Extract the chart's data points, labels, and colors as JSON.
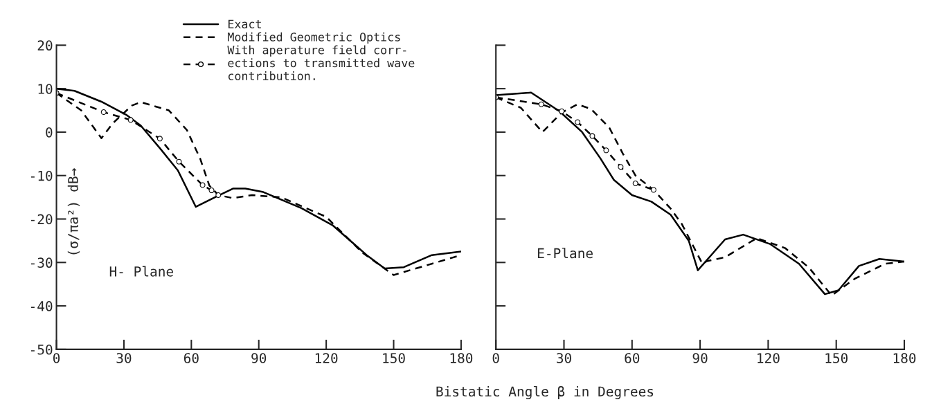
{
  "chart_data": [
    {
      "type": "line",
      "ylabel": "(σ/πa²) dB→",
      "xlim": [
        0,
        180
      ],
      "ylim": [
        -50,
        20
      ],
      "xticks": [
        0,
        30,
        60,
        90,
        120,
        150,
        180
      ],
      "yticks": [
        -50,
        -40,
        -30,
        -20,
        -10,
        0,
        10,
        20
      ],
      "grid": false,
      "legend": "top",
      "annotations": [
        "H- Plane"
      ],
      "series": [
        {
          "name": "Exact",
          "color": "#000000",
          "line_style": "solid",
          "x": [
            0,
            8,
            20,
            31,
            37.5,
            46,
            54,
            62,
            70.5,
            78.5,
            84,
            92,
            109,
            123,
            138,
            146,
            154.5,
            167,
            180
          ],
          "values": [
            10,
            9.5,
            7,
            4,
            1.5,
            -3.7,
            -8.8,
            -17.2,
            -15,
            -13,
            -13,
            -13.8,
            -17.5,
            -21.5,
            -28.3,
            -31.4,
            -31.1,
            -28.3,
            -27.5
          ]
        },
        {
          "name": "Modified Geometric Optics",
          "color": "#000000",
          "line_style": "dashed",
          "x": [
            0,
            11,
            20,
            25,
            33.5,
            37.5,
            50,
            58,
            64,
            68,
            72,
            78.5,
            87,
            100,
            120,
            136,
            150,
            165,
            180
          ],
          "values": [
            9,
            5,
            -1.4,
            2,
            6.1,
            6.9,
            5,
            0.5,
            -6.2,
            -12.3,
            -14.5,
            -15.2,
            -14.5,
            -15,
            -19.5,
            -27.7,
            -32.9,
            -30.6,
            -28.3
          ]
        },
        {
          "name": "With aperature field corr-\nections to transmitted wave\ncontribution.",
          "color": "#000000",
          "line_style": "dashed",
          "marker": "circle",
          "x": [
            0,
            21,
            33,
            46,
            54.5,
            65,
            69,
            72
          ],
          "values": [
            9,
            4.6,
            2.8,
            -1.5,
            -6.8,
            -12.2,
            -13.4,
            -14.5
          ]
        }
      ]
    },
    {
      "type": "line",
      "xlabel": "Bistatic Angle β in Degrees",
      "xlim": [
        0,
        180
      ],
      "ylim": [
        -50,
        20
      ],
      "xticks": [
        0,
        30,
        60,
        90,
        120,
        150,
        180
      ],
      "yticks": [
        {
          "value": -40,
          "label": null
        },
        {
          "value": -30,
          "label": null
        },
        {
          "value": -20,
          "label": null
        },
        {
          "value": -10,
          "label": null
        },
        {
          "value": 0,
          "label": null
        },
        {
          "value": 10,
          "label": null
        },
        {
          "value": 20,
          "label": null
        }
      ],
      "tick_labels": "x",
      "grid": false,
      "annotations": [
        "E-Plane"
      ],
      "series": [
        {
          "color": "#000000",
          "line_style": "solid",
          "x": [
            0,
            15.5,
            28,
            38,
            46,
            52,
            60,
            68.5,
            77,
            85,
            89,
            101,
            109,
            121,
            133.6,
            145,
            151,
            160,
            169,
            180
          ],
          "values": [
            8.5,
            9.1,
            4.8,
            0,
            -6,
            -11,
            -14.5,
            -16,
            -19,
            -25,
            -31.8,
            -24.7,
            -23.6,
            -25.8,
            -30.3,
            -37.3,
            -36.4,
            -30.8,
            -29.2,
            -29.8
          ]
        },
        {
          "color": "#000000",
          "line_style": "dashed",
          "x": [
            0,
            11,
            20.5,
            29,
            36,
            42,
            50,
            56,
            61.5,
            69.5,
            77,
            82,
            91,
            93,
            101,
            115,
            127.5,
            138,
            148,
            158,
            171.5,
            180
          ],
          "values": [
            8,
            5.6,
            0,
            4.5,
            6.4,
            5.3,
            1,
            -5,
            -10,
            -13.3,
            -17.6,
            -21.2,
            -30.3,
            -29.7,
            -28.8,
            -24.4,
            -26.7,
            -31.2,
            -37.6,
            -33.8,
            -30.3,
            -29.8
          ]
        },
        {
          "color": "#000000",
          "line_style": "dashed",
          "marker": "circle",
          "x": [
            0,
            20,
            29,
            36,
            42.5,
            48.6,
            55,
            61.5,
            69.5
          ],
          "values": [
            8,
            6.4,
            4.8,
            2.3,
            -0.9,
            -4.2,
            -8,
            -11.8,
            -13.3
          ]
        }
      ]
    }
  ]
}
